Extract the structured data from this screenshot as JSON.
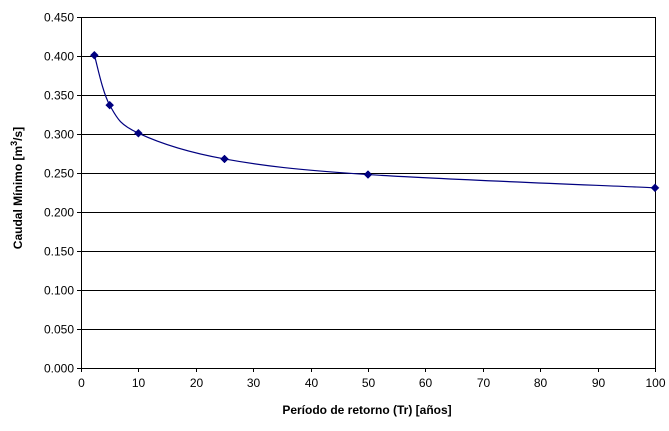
{
  "chart_data": {
    "type": "line",
    "title": "",
    "xlabel": "Período de retorno (Tr) [años]",
    "ylabel": {
      "main": "Caudal Mínimo [m",
      "superscript": "3",
      "suffix": "/s]"
    },
    "xlim": [
      0,
      100
    ],
    "ylim": [
      0.0,
      0.45
    ],
    "x_ticks": [
      0,
      10,
      20,
      30,
      40,
      50,
      60,
      70,
      80,
      90,
      100
    ],
    "y_ticks": [
      "0.000",
      "0.050",
      "0.100",
      "0.150",
      "0.200",
      "0.250",
      "0.300",
      "0.350",
      "0.400",
      "0.450"
    ],
    "grid": "horizontal",
    "smooth": true,
    "marker": "diamond",
    "series_color": "#000080",
    "series": [
      {
        "x": [
          2.33,
          5,
          10,
          25,
          50,
          100
        ],
        "values": [
          0.401,
          0.337,
          0.301,
          0.268,
          0.248,
          0.231
        ]
      }
    ]
  }
}
